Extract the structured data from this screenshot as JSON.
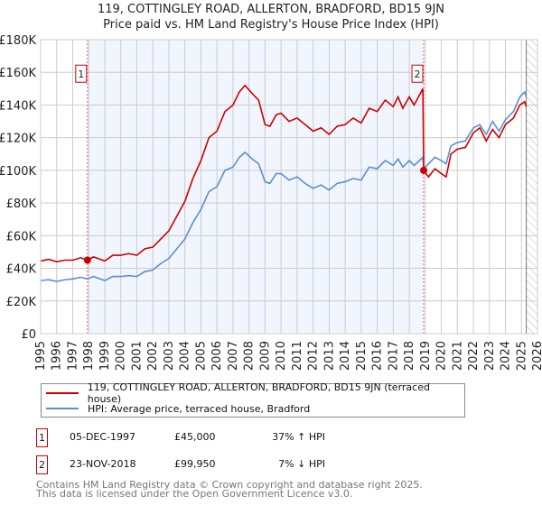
{
  "title_line1": "119, COTTINGLEY ROAD, ALLERTON, BRADFORD, BD15 9JN",
  "title_line2": "Price paid vs. HM Land Registry's House Price Index (HPI)",
  "chart_data": {
    "type": "line",
    "xlim": [
      1995,
      2026
    ],
    "ylim": [
      0,
      180000
    ],
    "yticks": [
      0,
      20000,
      40000,
      60000,
      80000,
      100000,
      120000,
      140000,
      160000,
      180000
    ],
    "ytick_labels": [
      "£0",
      "£20K",
      "£40K",
      "£60K",
      "£80K",
      "£100K",
      "£120K",
      "£140K",
      "£160K",
      "£180K"
    ],
    "xticks": [
      1995,
      1996,
      1997,
      1998,
      1999,
      2000,
      2001,
      2002,
      2003,
      2004,
      2005,
      2006,
      2007,
      2008,
      2009,
      2010,
      2011,
      2012,
      2013,
      2014,
      2015,
      2016,
      2017,
      2018,
      2019,
      2020,
      2021,
      2022,
      2023,
      2024,
      2025,
      2026
    ],
    "grid": true,
    "shaded_range": [
      1997.92,
      2018.9
    ],
    "hatched_from": 2025.3,
    "series": [
      {
        "name": "119, COTTINGLEY ROAD, ALLERTON, BRADFORD, BD15 9JN (terraced house)",
        "color": "#cc0000",
        "x": [
          1995,
          1995.5,
          1996,
          1996.5,
          1997,
          1997.5,
          1997.92,
          1998.3,
          1999,
          1999.5,
          2000,
          2000.5,
          2001,
          2001.5,
          2002,
          2002.5,
          2003,
          2003.5,
          2004,
          2004.5,
          2005,
          2005.5,
          2006,
          2006.5,
          2007,
          2007.4,
          2007.75,
          2008.2,
          2008.6,
          2009,
          2009.3,
          2009.7,
          2010,
          2010.5,
          2011,
          2011.5,
          2012,
          2012.5,
          2013,
          2013.5,
          2014,
          2014.5,
          2015,
          2015.5,
          2016,
          2016.5,
          2017,
          2017.3,
          2017.6,
          2018,
          2018.3,
          2018.85,
          2018.9,
          2019.2,
          2019.6,
          2020,
          2020.3,
          2020.6,
          2021,
          2021.5,
          2022,
          2022.4,
          2022.8,
          2023.2,
          2023.6,
          2024,
          2024.5,
          2024.9,
          2025.2,
          2025.3
        ],
        "y": [
          44500,
          45500,
          44000,
          45000,
          45000,
          46500,
          45000,
          47000,
          44500,
          48000,
          48000,
          49000,
          48000,
          52000,
          53000,
          58000,
          63000,
          72000,
          81000,
          95000,
          106000,
          120000,
          124000,
          136000,
          140000,
          148000,
          152000,
          147000,
          143000,
          128000,
          127000,
          134000,
          135000,
          130000,
          132000,
          128000,
          124000,
          126000,
          122000,
          127000,
          128000,
          132000,
          129000,
          138000,
          136000,
          143000,
          139000,
          145000,
          138000,
          145000,
          140000,
          150000,
          99950,
          96000,
          101000,
          98000,
          96000,
          110000,
          113000,
          114000,
          123000,
          126000,
          118000,
          125000,
          120000,
          128000,
          132000,
          140000,
          142000,
          139000
        ]
      },
      {
        "name": "HPI: Average price, terraced house, Bradford",
        "color": "#5b8fd0",
        "x": [
          1995,
          1995.5,
          1996,
          1996.5,
          1997,
          1997.5,
          1997.92,
          1998.3,
          1999,
          1999.5,
          2000,
          2000.5,
          2001,
          2001.5,
          2002,
          2002.5,
          2003,
          2003.5,
          2004,
          2004.5,
          2005,
          2005.5,
          2006,
          2006.5,
          2007,
          2007.4,
          2007.75,
          2008.2,
          2008.6,
          2009,
          2009.3,
          2009.7,
          2010,
          2010.5,
          2011,
          2011.5,
          2012,
          2012.5,
          2013,
          2013.5,
          2014,
          2014.5,
          2015,
          2015.5,
          2016,
          2016.5,
          2017,
          2017.3,
          2017.6,
          2018,
          2018.3,
          2018.85,
          2018.9,
          2019.2,
          2019.6,
          2020,
          2020.3,
          2020.6,
          2021,
          2021.5,
          2022,
          2022.4,
          2022.8,
          2023.2,
          2023.6,
          2024,
          2024.5,
          2024.9,
          2025.2,
          2025.3
        ],
        "y": [
          32500,
          33000,
          32000,
          33000,
          33500,
          34500,
          33500,
          35000,
          32500,
          35000,
          35000,
          35500,
          35000,
          38000,
          39000,
          43000,
          46000,
          52000,
          58000,
          68000,
          76000,
          87000,
          90000,
          100000,
          102000,
          108000,
          111000,
          107000,
          104000,
          93000,
          92000,
          98000,
          98000,
          94000,
          96000,
          92000,
          89000,
          91000,
          88000,
          92000,
          93000,
          95000,
          94000,
          102000,
          101000,
          106000,
          103000,
          107000,
          102000,
          106000,
          103000,
          108000,
          101000,
          104000,
          108000,
          106000,
          104000,
          115000,
          117000,
          118000,
          126000,
          128000,
          122000,
          130000,
          124000,
          131000,
          136000,
          145000,
          148000,
          145000
        ]
      }
    ],
    "annotations": [
      {
        "label": "1",
        "x": 1997.92,
        "y": 45000
      },
      {
        "label": "2",
        "x": 2018.9,
        "y": 99950
      }
    ]
  },
  "legend": [
    {
      "label": "119, COTTINGLEY ROAD, ALLERTON, BRADFORD, BD15 9JN (terraced house)",
      "color": "#cc0000"
    },
    {
      "label": "HPI: Average price, terraced house, Bradford",
      "color": "#5b8fd0"
    }
  ],
  "transactions": [
    {
      "num": "1",
      "date": "05-DEC-1997",
      "price": "£45,000",
      "hpi": "37% ↑ HPI"
    },
    {
      "num": "2",
      "date": "23-NOV-2018",
      "price": "£99,950",
      "hpi": "7% ↓ HPI"
    }
  ],
  "footer_line1": "Contains HM Land Registry data © Crown copyright and database right 2025.",
  "footer_line2": "This data is licensed under the Open Government Licence v3.0."
}
